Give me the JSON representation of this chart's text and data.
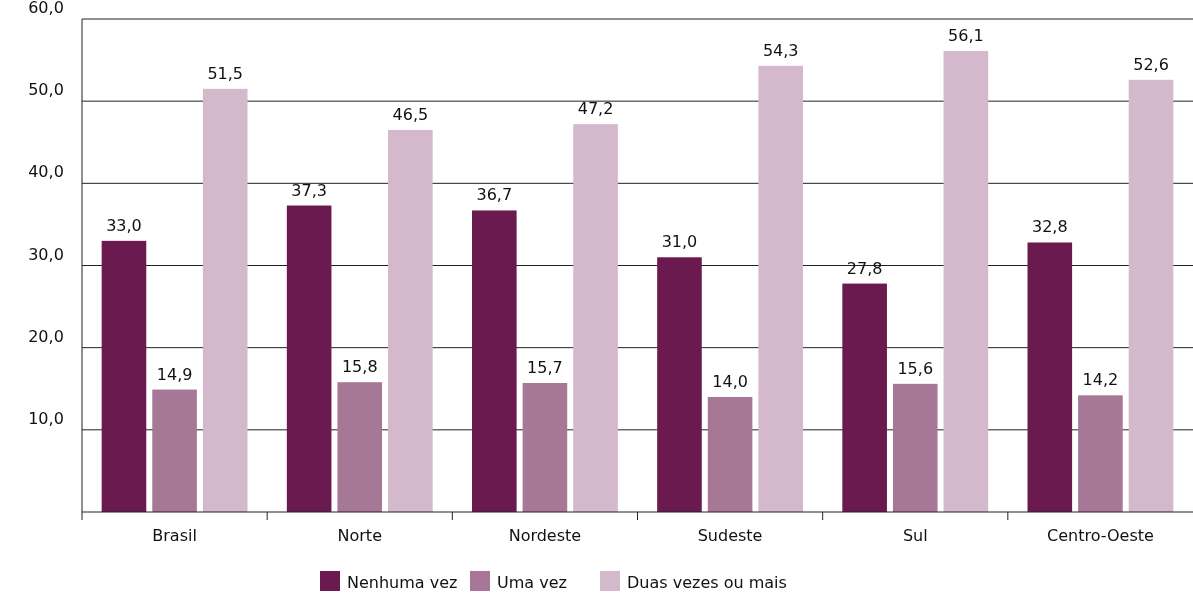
{
  "chart_data": {
    "type": "bar",
    "categories": [
      "Brasil",
      "Norte",
      "Nordeste",
      "Sudeste",
      "Sul",
      "Centro-Oeste"
    ],
    "series": [
      {
        "name": "Nenhuma vez",
        "color": "#6b1a4f",
        "values": [
          33.0,
          37.3,
          36.7,
          31.0,
          27.8,
          32.8
        ],
        "value_labels": [
          "33,0",
          "37,3",
          "36,7",
          "31,0",
          "27,8",
          "32,8"
        ]
      },
      {
        "name": "Uma vez",
        "color": "#a77896",
        "values": [
          14.9,
          15.8,
          15.7,
          14.0,
          15.6,
          14.2
        ],
        "value_labels": [
          "14,9",
          "15,8",
          "15,7",
          "14,0",
          "15,6",
          "14,2"
        ]
      },
      {
        "name": "Duas vezes ou mais",
        "color": "#d4b8cb",
        "values": [
          51.5,
          46.5,
          47.2,
          54.3,
          56.1,
          52.6
        ],
        "value_labels": [
          "51,5",
          "46,5",
          "47,2",
          "54,3",
          "56,1",
          "52,6"
        ]
      }
    ],
    "ylim": [
      0,
      60
    ],
    "yticks": [
      {
        "value": 10,
        "label": "10,0"
      },
      {
        "value": 20,
        "label": "20,0"
      },
      {
        "value": 30,
        "label": "30,0"
      },
      {
        "value": 40,
        "label": "40,0"
      },
      {
        "value": 50,
        "label": "50,0"
      },
      {
        "value": 60,
        "label": "60,0"
      }
    ],
    "grid": "y",
    "legend": "bottom"
  }
}
